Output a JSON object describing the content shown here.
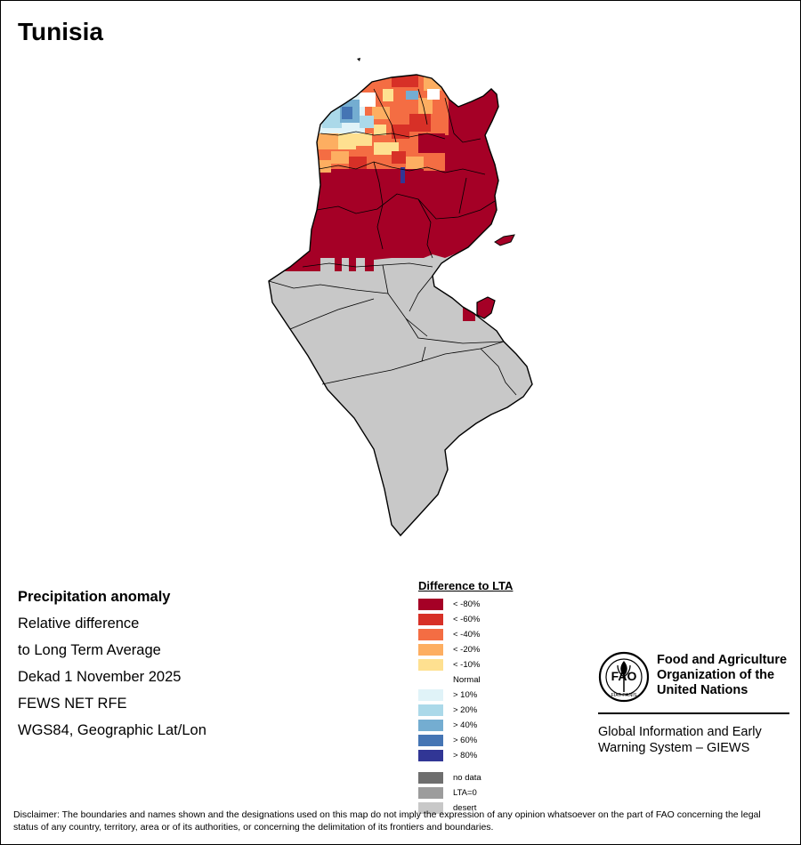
{
  "map": {
    "title": "Tunisia"
  },
  "info": {
    "lines": [
      "Precipitation anomaly",
      "Relative difference",
      "to Long Term Average",
      "Dekad 1 November 2025",
      "FEWS NET RFE",
      "WGS84, Geographic Lat/Lon"
    ]
  },
  "legend": {
    "title": "Difference to LTA",
    "items": [
      {
        "label": "< -80%",
        "color": "#a50026"
      },
      {
        "label": "< -60%",
        "color": "#d73027"
      },
      {
        "label": "< -40%",
        "color": "#f46d43"
      },
      {
        "label": "< -20%",
        "color": "#fdae61"
      },
      {
        "label": "< -10%",
        "color": "#fee090"
      },
      {
        "label": "Normal",
        "color": "#ffffff"
      },
      {
        "label": "> 10%",
        "color": "#e0f3f8"
      },
      {
        "label": "> 20%",
        "color": "#abd9e9"
      },
      {
        "label": "> 40%",
        "color": "#74add1"
      },
      {
        "label": "> 60%",
        "color": "#4575b4"
      },
      {
        "label": "> 80%",
        "color": "#313695"
      }
    ],
    "extra": [
      {
        "label": "no data",
        "color": "#6e6e6e"
      },
      {
        "label": "LTA=0",
        "color": "#9c9c9c"
      },
      {
        "label": "desert",
        "color": "#c8c8c8"
      }
    ]
  },
  "fao": {
    "name": [
      "Food and Agriculture",
      "Organization of the",
      "United Nations"
    ],
    "logo_text": "FAO",
    "motto": "FIAT PANIS",
    "giews": [
      "Global Information and Early",
      "Warning System – GIEWS"
    ]
  },
  "disclaimer": "Disclaimer: The boundaries and names shown and the designations used on this map do not imply the expression of any opinion whatsoever on the part of FAO concerning the legal status of any country, territory, area or of its authorities, or concerning the delimitation of its frontiers and boundaries.",
  "colors": {
    "red_dark": "#a50026",
    "red": "#d73027",
    "orange": "#f46d43",
    "orange_light": "#fdae61",
    "yellow": "#fee090",
    "blue_pale": "#e0f3f8",
    "blue_light": "#abd9e9",
    "blue_mid": "#74add1",
    "blue": "#4575b4",
    "blue_dark": "#313695",
    "desert": "#c8c8c8"
  }
}
